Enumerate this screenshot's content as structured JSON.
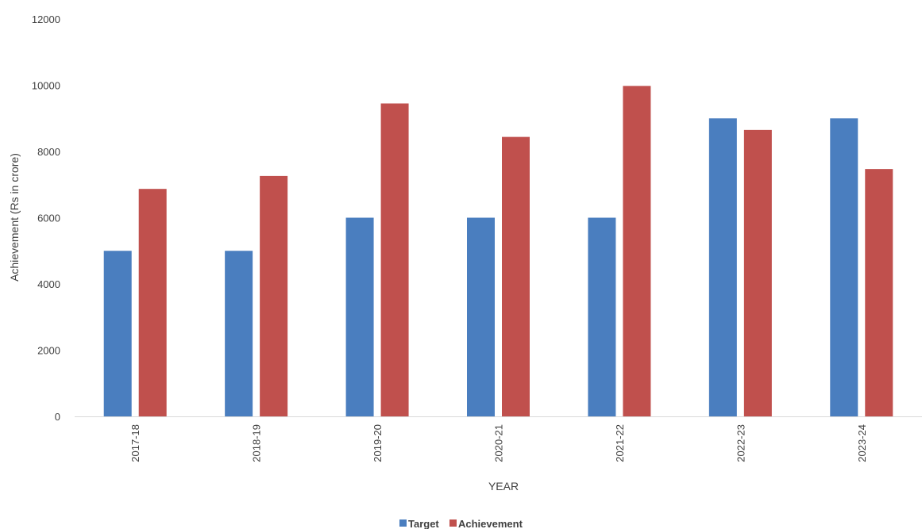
{
  "chart_data": {
    "type": "bar",
    "categories": [
      "2017-18",
      "2018-19",
      "2019-20",
      "2020-21",
      "2021-22",
      "2022-23",
      "2023-24"
    ],
    "series": [
      {
        "name": "Target",
        "color": "#4a7ebf",
        "values": [
          5000,
          5000,
          6000,
          6000,
          6000,
          9000,
          9000
        ]
      },
      {
        "name": "Achievement",
        "color": "#c0504d",
        "values": [
          6870,
          7260,
          9450,
          8440,
          9980,
          8650,
          7470
        ]
      }
    ],
    "title": "",
    "xlabel": "YEAR",
    "ylabel": "Achievement (Rs in crore)",
    "ylim": [
      0,
      12000
    ],
    "yticks": [
      "0",
      "2000",
      "4000",
      "6000",
      "8000",
      "10000",
      "12000"
    ],
    "grid": false,
    "legend_position": "bottom"
  }
}
